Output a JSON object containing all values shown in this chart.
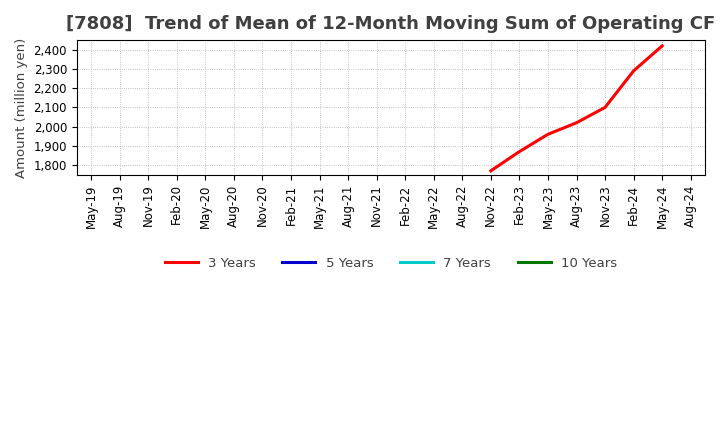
{
  "title": "[7808]  Trend of Mean of 12-Month Moving Sum of Operating CF",
  "ylabel": "Amount (million yen)",
  "xlabel": "",
  "ylim": [
    1750,
    2450
  ],
  "yticks": [
    1800,
    1900,
    2000,
    2100,
    2200,
    2300,
    2400
  ],
  "background_color": "#ffffff",
  "plot_background_color": "#ffffff",
  "grid_color": "#b0b0b0",
  "title_color": "#404040",
  "x_labels": [
    "May-19",
    "Aug-19",
    "Nov-19",
    "Feb-20",
    "May-20",
    "Aug-20",
    "Nov-20",
    "Feb-21",
    "May-21",
    "Aug-21",
    "Nov-21",
    "Feb-22",
    "May-22",
    "Aug-22",
    "Nov-22",
    "Feb-23",
    "May-23",
    "Aug-23",
    "Nov-23",
    "Feb-24",
    "May-24",
    "Aug-24"
  ],
  "series": {
    "3 Years": {
      "color": "#ff0000",
      "linewidth": 2.2,
      "data_x": [
        "Nov-22",
        "Feb-23",
        "May-23",
        "Aug-23",
        "Nov-23",
        "Feb-24",
        "May-24"
      ],
      "data_y": [
        1770,
        1870,
        1960,
        2020,
        2100,
        2290,
        2420
      ]
    },
    "5 Years": {
      "color": "#0000cc",
      "linewidth": 2.2,
      "data_x": [],
      "data_y": []
    },
    "7 Years": {
      "color": "#00cccc",
      "linewidth": 2.2,
      "data_x": [],
      "data_y": []
    },
    "10 Years": {
      "color": "#007700",
      "linewidth": 2.2,
      "data_x": [],
      "data_y": []
    }
  },
  "legend_order": [
    "3 Years",
    "5 Years",
    "7 Years",
    "10 Years"
  ],
  "title_fontsize": 13,
  "tick_fontsize": 8.5,
  "ylabel_fontsize": 9.5,
  "legend_fontsize": 9.5
}
